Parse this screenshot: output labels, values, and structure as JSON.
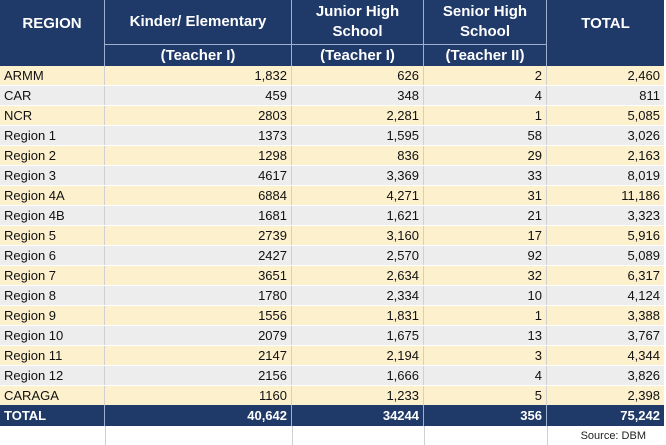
{
  "table": {
    "headers": {
      "region": "REGION",
      "kinder_top": "Kinder/ Elementary",
      "kinder_sub": "(Teacher I)",
      "jhs_top": "Junior High School",
      "jhs_sub": "(Teacher I)",
      "shs_top": "Senior High School",
      "shs_sub": "(Teacher II)",
      "total": "TOTAL"
    },
    "rows": [
      {
        "region": "ARMM",
        "kinder": "1,832",
        "jhs": "626",
        "shs": "2",
        "total": "2,460"
      },
      {
        "region": "CAR",
        "kinder": "459",
        "jhs": "348",
        "shs": "4",
        "total": "811"
      },
      {
        "region": "NCR",
        "kinder": "2803",
        "jhs": "2,281",
        "shs": "1",
        "total": "5,085"
      },
      {
        "region": "Region  1",
        "kinder": "1373",
        "jhs": "1,595",
        "shs": "58",
        "total": "3,026"
      },
      {
        "region": "Region 2",
        "kinder": "1298",
        "jhs": "836",
        "shs": "29",
        "total": "2,163"
      },
      {
        "region": "Region 3",
        "kinder": "4617",
        "jhs": "3,369",
        "shs": "33",
        "total": "8,019"
      },
      {
        "region": "Region 4A",
        "kinder": "6884",
        "jhs": "4,271",
        "shs": "31",
        "total": "11,186"
      },
      {
        "region": "Region 4B",
        "kinder": "1681",
        "jhs": "1,621",
        "shs": "21",
        "total": "3,323"
      },
      {
        "region": "Region 5",
        "kinder": "2739",
        "jhs": "3,160",
        "shs": "17",
        "total": "5,916"
      },
      {
        "region": "Region 6",
        "kinder": "2427",
        "jhs": "2,570",
        "shs": "92",
        "total": "5,089"
      },
      {
        "region": "Region 7",
        "kinder": "3651",
        "jhs": "2,634",
        "shs": "32",
        "total": "6,317"
      },
      {
        "region": "Region 8",
        "kinder": "1780",
        "jhs": "2,334",
        "shs": "10",
        "total": "4,124"
      },
      {
        "region": "Region 9",
        "kinder": "1556",
        "jhs": "1,831",
        "shs": "1",
        "total": "3,388"
      },
      {
        "region": "Region 10",
        "kinder": "2079",
        "jhs": "1,675",
        "shs": "13",
        "total": "3,767"
      },
      {
        "region": "Region 11",
        "kinder": "2147",
        "jhs": "2,194",
        "shs": "3",
        "total": "4,344"
      },
      {
        "region": "Region 12",
        "kinder": "2156",
        "jhs": "1,666",
        "shs": "4",
        "total": "3,826"
      },
      {
        "region": "CARAGA",
        "kinder": "1160",
        "jhs": "1,233",
        "shs": "5",
        "total": "2,398"
      }
    ],
    "totals": {
      "region": "TOTAL",
      "kinder": "40,642",
      "jhs": "34244",
      "shs": "356",
      "total": "75,242"
    }
  },
  "source": "Source: DBM",
  "colors": {
    "header_bg": "#1f3a68",
    "row_yellow": "#fdf0cc",
    "row_gray": "#ededed"
  }
}
